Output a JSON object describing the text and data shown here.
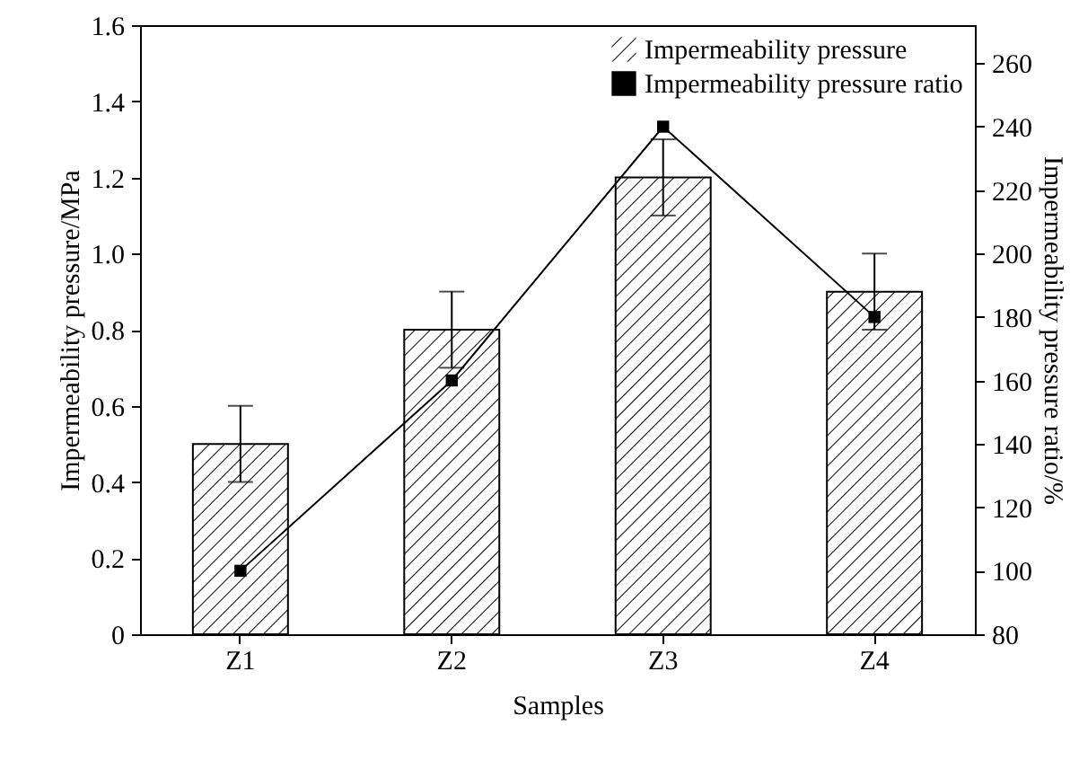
{
  "chart_data": {
    "type": "bar",
    "categories": [
      "Z1",
      "Z2",
      "Z3",
      "Z4"
    ],
    "xlabel": "Samples",
    "ylabel": "Impermeability pressure/MPa",
    "y2label": "Impermeability pressure ratio/%",
    "ylim": [
      0,
      1.6
    ],
    "yticks": [
      0,
      0.2,
      0.4,
      0.6,
      0.8,
      {
        "value": 1,
        "label": "1.0"
      },
      1.2,
      1.4,
      1.6
    ],
    "y2lim": [
      80,
      272
    ],
    "y2ticks": [
      80,
      100,
      120,
      140,
      160,
      180,
      200,
      220,
      240,
      260
    ],
    "legend": "top right",
    "grid": false,
    "marker": "square",
    "series": [
      {
        "name": "Impermeability pressure",
        "color": "#000000",
        "values": [
          0.5,
          0.8,
          1.2,
          0.9
        ],
        "errors": [
          0.1,
          0.1,
          0.1,
          0.1
        ]
      },
      {
        "name": "Impermeability pressure ratio",
        "type": "line",
        "axis": "y2",
        "color": "#000000",
        "values": [
          100,
          160,
          240,
          180
        ]
      }
    ]
  }
}
